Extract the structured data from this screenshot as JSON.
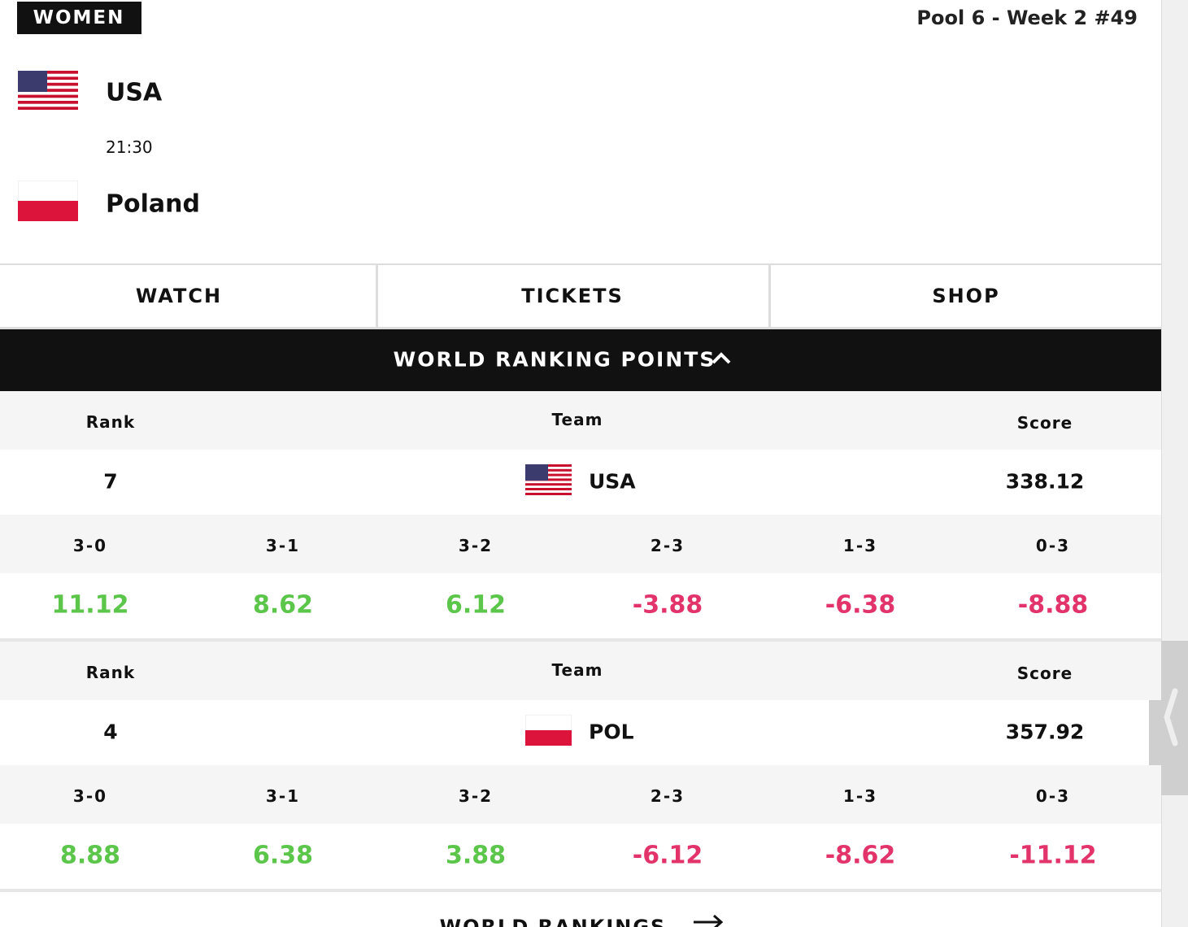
{
  "header": {
    "category": "WOMEN",
    "pool": "Pool 6 - Week 2 #49"
  },
  "match": {
    "home": "USA",
    "time": "21:30",
    "away": "Poland"
  },
  "actions": [
    "WATCH",
    "TICKETS",
    "SHOP"
  ],
  "ranking": {
    "title": "WORLD RANKING POINTS",
    "teams": [
      {
        "rank_label": "Rank",
        "team_label": "Team",
        "score_label": "Score",
        "rank": 7,
        "team": "USA",
        "score": 338.12,
        "outcomes": [
          "3-0",
          "3-1",
          "3-2",
          "2-3",
          "1-3",
          "0-3"
        ],
        "points": [
          11.12,
          8.62,
          6.12,
          -3.88,
          -6.38,
          -8.88
        ]
      },
      {
        "rank_label": "Rank",
        "team_label": "Team",
        "score_label": "Score",
        "rank": 4,
        "team": "POL",
        "score": 357.92,
        "outcomes": [
          "3-0",
          "3-1",
          "3-2",
          "2-3",
          "1-3",
          "0-3"
        ],
        "points": [
          8.88,
          6.38,
          3.88,
          -6.12,
          -8.62,
          -11.12
        ]
      }
    ]
  },
  "footer_link": "WORLD RANKINGS"
}
